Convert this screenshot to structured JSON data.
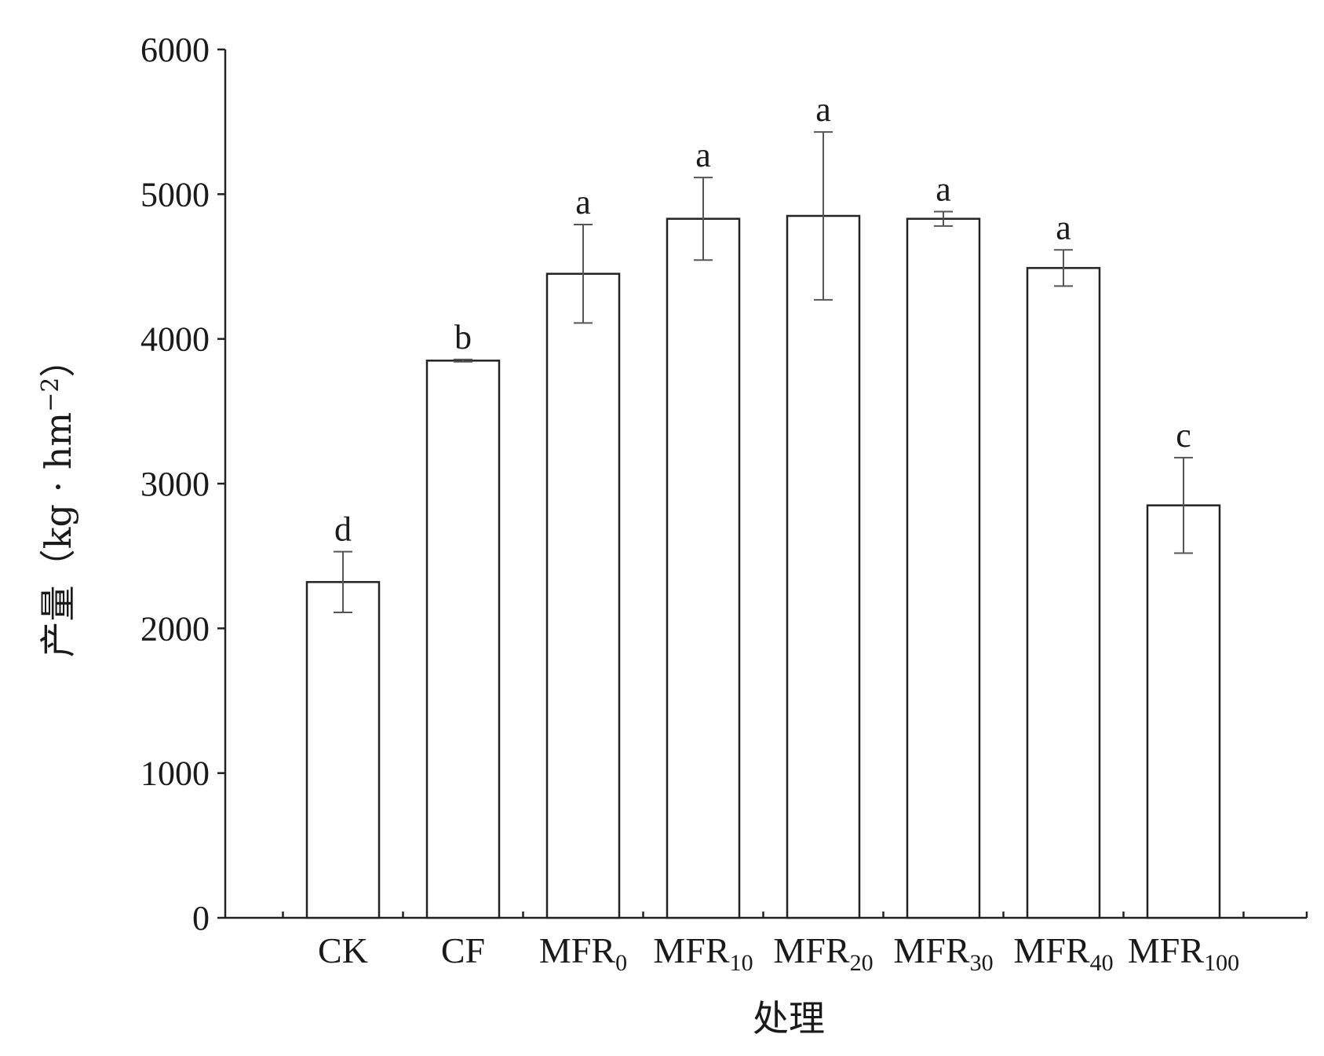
{
  "chart_data": {
    "type": "bar",
    "categories": [
      {
        "base": "CK",
        "sub": ""
      },
      {
        "base": "CF",
        "sub": ""
      },
      {
        "base": "MFR",
        "sub": "0"
      },
      {
        "base": "MFR",
        "sub": "10"
      },
      {
        "base": "MFR",
        "sub": "20"
      },
      {
        "base": "MFR",
        "sub": "30"
      },
      {
        "base": "MFR",
        "sub": "40"
      },
      {
        "base": "MFR",
        "sub": "100"
      }
    ],
    "values": [
      2320,
      3850,
      4450,
      4830,
      4850,
      4830,
      4490,
      2850
    ],
    "error": [
      210,
      8,
      340,
      285,
      580,
      50,
      125,
      330
    ],
    "significance": [
      "d",
      "b",
      "a",
      "a",
      "a",
      "a",
      "a",
      "c"
    ],
    "xlabel": "处理",
    "ylabel": "产量（kg · hm−2）",
    "ylabel_parts": {
      "main": "产量（kg · hm",
      "sup": "−2",
      "close": "）"
    },
    "ylim": [
      0,
      6000
    ],
    "yticks": [
      0,
      1000,
      2000,
      3000,
      4000,
      5000,
      6000
    ],
    "grid": false,
    "legend": "none",
    "bar_fill": "#ffffff",
    "bar_stroke": "#222222"
  }
}
